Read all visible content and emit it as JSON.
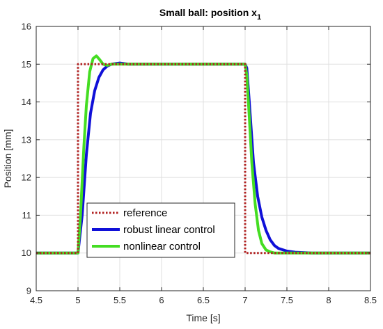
{
  "chart_data": {
    "type": "line",
    "title": "Small ball: position x",
    "title_subscript": "1",
    "xlabel": "Time [s]",
    "ylabel": "Position [mm]",
    "xlim": [
      4.5,
      8.5
    ],
    "ylim": [
      9,
      16
    ],
    "xticks": [
      "4.5",
      "5",
      "5.5",
      "6",
      "6.5",
      "7",
      "7.5",
      "8",
      "8.5"
    ],
    "yticks": [
      "9",
      "10",
      "11",
      "12",
      "13",
      "14",
      "15",
      "16"
    ],
    "grid": true,
    "legend_position": "bottom-center",
    "series": [
      {
        "name": "reference",
        "color": "#b22222",
        "style": "dotted",
        "x": [
          4.5,
          5.0,
          5.0,
          7.0,
          7.0,
          8.5
        ],
        "y": [
          10,
          10,
          15,
          15,
          10,
          10
        ]
      },
      {
        "name": "robust linear control",
        "color": "#1010d8",
        "style": "solid",
        "x": [
          4.5,
          5.0,
          5.05,
          5.1,
          5.15,
          5.2,
          5.25,
          5.3,
          5.35,
          5.4,
          5.5,
          5.6,
          7.0,
          7.02,
          7.05,
          7.1,
          7.15,
          7.2,
          7.25,
          7.3,
          7.35,
          7.4,
          7.5,
          7.6,
          7.8,
          8.5
        ],
        "y": [
          10,
          10,
          11.0,
          12.6,
          13.7,
          14.3,
          14.65,
          14.85,
          14.95,
          15.0,
          15.03,
          15.0,
          15.0,
          14.9,
          14.0,
          12.4,
          11.5,
          10.95,
          10.6,
          10.35,
          10.2,
          10.12,
          10.05,
          10.02,
          10.0,
          10.0
        ]
      },
      {
        "name": "nonlinear control",
        "color": "#44dd22",
        "style": "solid",
        "x": [
          4.5,
          5.0,
          5.03,
          5.07,
          5.1,
          5.14,
          5.18,
          5.22,
          5.26,
          5.3,
          5.35,
          5.4,
          5.5,
          7.0,
          7.02,
          7.05,
          7.08,
          7.12,
          7.16,
          7.2,
          7.25,
          7.3,
          7.35,
          7.45,
          7.6,
          8.5
        ],
        "y": [
          10,
          10,
          11.0,
          12.8,
          13.9,
          14.8,
          15.15,
          15.22,
          15.12,
          15.0,
          14.97,
          15.0,
          15.0,
          15.0,
          14.7,
          13.6,
          12.4,
          11.3,
          10.6,
          10.25,
          10.08,
          10.03,
          10.0,
          10.0,
          10.0,
          10.0
        ]
      }
    ]
  }
}
